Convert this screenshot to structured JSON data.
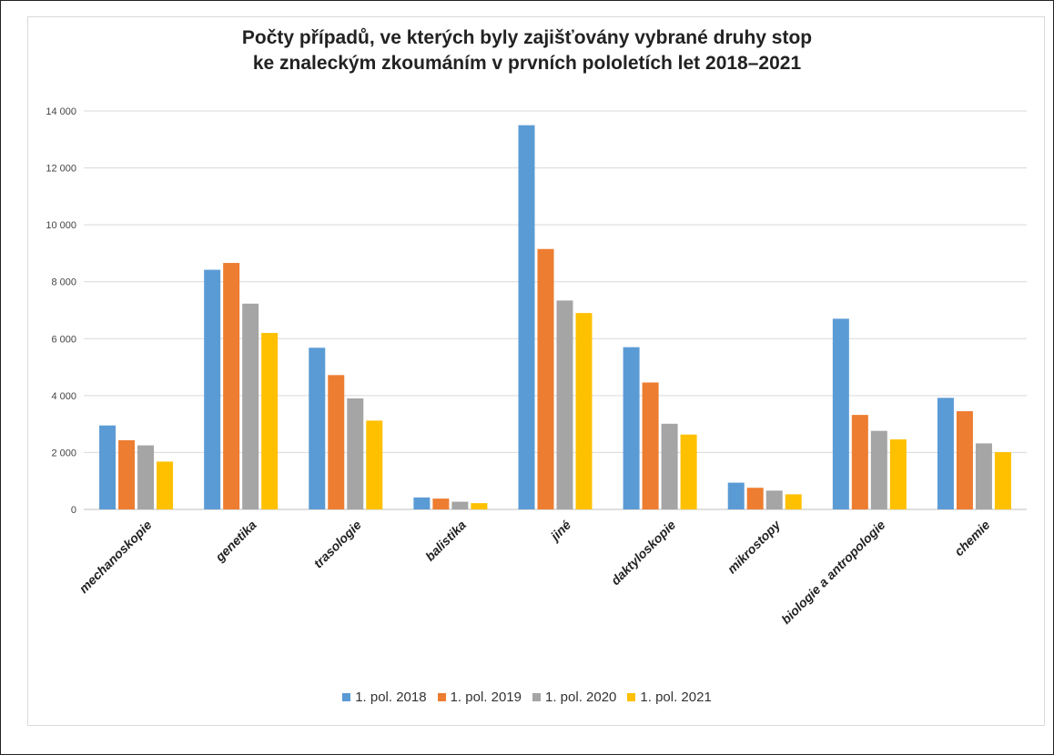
{
  "chart_data": {
    "type": "bar",
    "title_lines": [
      "Počty případů, ve kterých byly zajišťovány vybrané druhy stop",
      "ke znaleckým zkoumáním v prvních pololetích let 2018–2021"
    ],
    "xlabel": "",
    "ylabel": "",
    "ylim": [
      0,
      14000
    ],
    "y_ticks": [
      0,
      2000,
      4000,
      6000,
      8000,
      10000,
      12000,
      14000
    ],
    "y_tick_labels": [
      "0",
      "2 000",
      "4 000",
      "6 000",
      "8 000",
      "10 000",
      "12 000",
      "14 000"
    ],
    "grid": true,
    "legend_position": "bottom",
    "categories": [
      "mechanoskopie",
      "genetika",
      "trasologie",
      "balistika",
      "jiné",
      "daktyloskopie",
      "mikrostopy",
      "biologie a antropologie",
      "chemie"
    ],
    "series": [
      {
        "name": "1. pol. 2018",
        "color": "#5b9bd5",
        "values": [
          2950,
          8420,
          5680,
          420,
          13500,
          5700,
          940,
          6700,
          3920
        ]
      },
      {
        "name": "1. pol. 2019",
        "color": "#ed7d31",
        "values": [
          2430,
          8660,
          4720,
          380,
          9150,
          4460,
          760,
          3320,
          3450
        ]
      },
      {
        "name": "1. pol. 2020",
        "color": "#a5a5a5",
        "values": [
          2250,
          7230,
          3900,
          270,
          7340,
          3010,
          660,
          2760,
          2320
        ]
      },
      {
        "name": "1. pol. 2021",
        "color": "#ffc000",
        "values": [
          1680,
          6200,
          3120,
          220,
          6900,
          2630,
          530,
          2460,
          2010
        ]
      }
    ]
  }
}
